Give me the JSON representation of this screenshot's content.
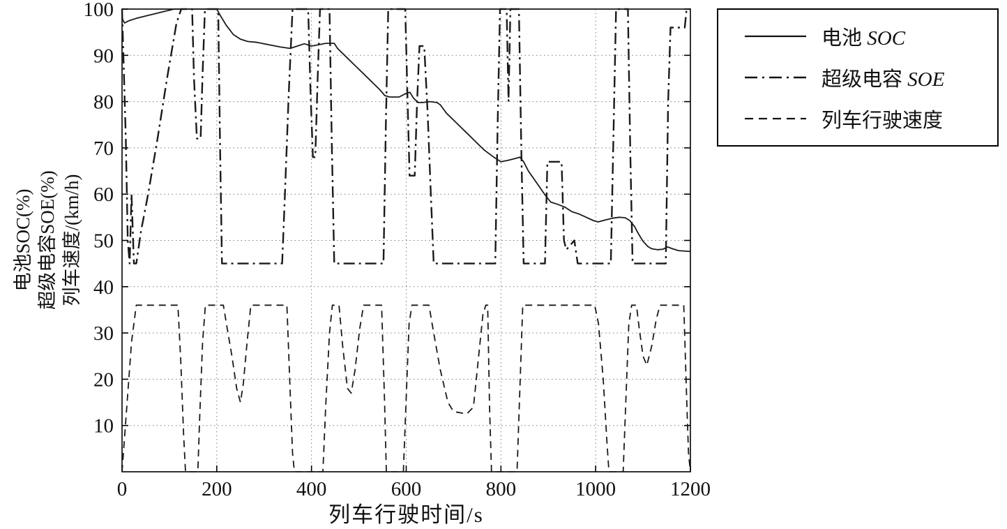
{
  "figure": {
    "background": "#ffffff",
    "axis_color": "#000000",
    "grid_color": "#7a7a7a",
    "line_color": "#111111"
  },
  "ylabel_lines": [
    "电池SOC(%)",
    "超级电容SOE(%)",
    "列车速度/(km/h)"
  ],
  "xlabel": "列车行驶时间/s",
  "legend": {
    "items": [
      {
        "prefix": "电池 ",
        "italic": "SOC",
        "style": "solid"
      },
      {
        "prefix": "超级电容 ",
        "italic": "SOE",
        "style": "dashdot"
      },
      {
        "prefix": "列车行驶速度",
        "italic": "",
        "style": "dashed"
      }
    ]
  },
  "chart_data": {
    "type": "line",
    "title": "",
    "xlabel": "列车行驶时间/s",
    "ylabel": "电池SOC(%) / 超级电容SOE(%) / 列车速度/(km/h)",
    "xlim": [
      0,
      1200
    ],
    "ylim": [
      0,
      100
    ],
    "x_ticks": [
      0,
      200,
      400,
      600,
      800,
      1000,
      1200
    ],
    "y_ticks": [
      10,
      20,
      30,
      40,
      50,
      60,
      70,
      80,
      90,
      100
    ],
    "grid": true,
    "legend_position": "outside-top-right",
    "series": [
      {
        "name": "电池 SOC",
        "style": "solid",
        "color": "#1a1a1a",
        "width": 1.8,
        "points": [
          [
            0,
            98
          ],
          [
            5,
            97
          ],
          [
            15,
            97.5
          ],
          [
            30,
            98
          ],
          [
            50,
            98.5
          ],
          [
            70,
            99
          ],
          [
            90,
            99.5
          ],
          [
            110,
            100
          ],
          [
            200,
            100
          ],
          [
            208,
            98.5
          ],
          [
            220,
            96.5
          ],
          [
            235,
            94.5
          ],
          [
            250,
            93.5
          ],
          [
            265,
            93
          ],
          [
            285,
            92.8
          ],
          [
            310,
            92.3
          ],
          [
            335,
            91.8
          ],
          [
            355,
            91.5
          ],
          [
            370,
            92
          ],
          [
            385,
            92.5
          ],
          [
            400,
            92
          ],
          [
            415,
            92.3
          ],
          [
            430,
            92.6
          ],
          [
            448,
            92.6
          ],
          [
            455,
            91.5
          ],
          [
            470,
            90
          ],
          [
            490,
            88
          ],
          [
            510,
            86
          ],
          [
            530,
            84
          ],
          [
            545,
            82.5
          ],
          [
            555,
            81.3
          ],
          [
            565,
            81
          ],
          [
            585,
            81
          ],
          [
            600,
            81.8
          ],
          [
            608,
            82
          ],
          [
            615,
            80.8
          ],
          [
            625,
            79.8
          ],
          [
            635,
            79.8
          ],
          [
            650,
            80
          ],
          [
            665,
            79.8
          ],
          [
            672,
            79.3
          ],
          [
            685,
            77.5
          ],
          [
            705,
            75.5
          ],
          [
            725,
            73.5
          ],
          [
            745,
            71.5
          ],
          [
            765,
            69.5
          ],
          [
            785,
            68
          ],
          [
            800,
            67
          ],
          [
            815,
            67.3
          ],
          [
            830,
            67.7
          ],
          [
            840,
            68
          ],
          [
            848,
            67
          ],
          [
            858,
            65
          ],
          [
            875,
            62.5
          ],
          [
            892,
            60
          ],
          [
            905,
            58.3
          ],
          [
            920,
            57.8
          ],
          [
            935,
            57.2
          ],
          [
            950,
            56.2
          ],
          [
            965,
            55.7
          ],
          [
            980,
            55
          ],
          [
            995,
            54.3
          ],
          [
            1005,
            54
          ],
          [
            1020,
            54.4
          ],
          [
            1035,
            54.8
          ],
          [
            1050,
            55
          ],
          [
            1062,
            54.9
          ],
          [
            1072,
            54.3
          ],
          [
            1082,
            53
          ],
          [
            1090,
            51.5
          ],
          [
            1100,
            49.8
          ],
          [
            1110,
            48.7
          ],
          [
            1118,
            48.2
          ],
          [
            1130,
            48
          ],
          [
            1142,
            48.1
          ],
          [
            1152,
            48.6
          ],
          [
            1162,
            48.2
          ],
          [
            1175,
            47.8
          ],
          [
            1200,
            47.6
          ]
        ]
      },
      {
        "name": "超级电容 SOE",
        "style": "dashdot",
        "color": "#1a1a1a",
        "width": 2.4,
        "points": [
          [
            0,
            100
          ],
          [
            8,
            72
          ],
          [
            12,
            50
          ],
          [
            16,
            45
          ],
          [
            20,
            60
          ],
          [
            25,
            45
          ],
          [
            30,
            45
          ],
          [
            40,
            52
          ],
          [
            55,
            60
          ],
          [
            75,
            72
          ],
          [
            95,
            85
          ],
          [
            115,
            97
          ],
          [
            125,
            100
          ],
          [
            148,
            100
          ],
          [
            152,
            85
          ],
          [
            158,
            72
          ],
          [
            166,
            72
          ],
          [
            170,
            86
          ],
          [
            175,
            100
          ],
          [
            203,
            100
          ],
          [
            207,
            70
          ],
          [
            211,
            45
          ],
          [
            215,
            45
          ],
          [
            338,
            45
          ],
          [
            344,
            60
          ],
          [
            352,
            82
          ],
          [
            360,
            100
          ],
          [
            393,
            100
          ],
          [
            398,
            82
          ],
          [
            403,
            68
          ],
          [
            408,
            68
          ],
          [
            413,
            85
          ],
          [
            418,
            100
          ],
          [
            438,
            100
          ],
          [
            443,
            70
          ],
          [
            448,
            45
          ],
          [
            455,
            45
          ],
          [
            552,
            45
          ],
          [
            557,
            75
          ],
          [
            562,
            100
          ],
          [
            598,
            100
          ],
          [
            603,
            80
          ],
          [
            607,
            64
          ],
          [
            618,
            64
          ],
          [
            623,
            80
          ],
          [
            628,
            92
          ],
          [
            638,
            92
          ],
          [
            645,
            78
          ],
          [
            652,
            60
          ],
          [
            658,
            45
          ],
          [
            665,
            45
          ],
          [
            788,
            45
          ],
          [
            793,
            75
          ],
          [
            798,
            100
          ],
          [
            812,
            100
          ],
          [
            816,
            80
          ],
          [
            820,
            100
          ],
          [
            838,
            100
          ],
          [
            843,
            70
          ],
          [
            848,
            45
          ],
          [
            855,
            45
          ],
          [
            893,
            45
          ],
          [
            898,
            67
          ],
          [
            928,
            67
          ],
          [
            933,
            50
          ],
          [
            938,
            48
          ],
          [
            955,
            50
          ],
          [
            962,
            45
          ],
          [
            968,
            45
          ],
          [
            1032,
            45
          ],
          [
            1038,
            75
          ],
          [
            1043,
            100
          ],
          [
            1068,
            100
          ],
          [
            1073,
            70
          ],
          [
            1078,
            45
          ],
          [
            1085,
            45
          ],
          [
            1148,
            45
          ],
          [
            1153,
            80
          ],
          [
            1158,
            96
          ],
          [
            1188,
            96
          ],
          [
            1192,
            100
          ],
          [
            1200,
            100
          ]
        ]
      },
      {
        "name": "列车行驶速度",
        "style": "dashed",
        "color": "#1a1a1a",
        "width": 1.8,
        "points": [
          [
            0,
            0
          ],
          [
            10,
            14
          ],
          [
            20,
            28
          ],
          [
            30,
            36
          ],
          [
            118,
            36
          ],
          [
            124,
            24
          ],
          [
            130,
            8
          ],
          [
            134,
            0
          ],
          [
            160,
            0
          ],
          [
            164,
            12
          ],
          [
            170,
            28
          ],
          [
            176,
            36
          ],
          [
            214,
            36
          ],
          [
            222,
            31
          ],
          [
            232,
            25
          ],
          [
            242,
            18
          ],
          [
            250,
            15
          ],
          [
            256,
            19
          ],
          [
            264,
            28
          ],
          [
            272,
            36
          ],
          [
            348,
            36
          ],
          [
            354,
            20
          ],
          [
            360,
            4
          ],
          [
            364,
            0
          ],
          [
            424,
            0
          ],
          [
            430,
            14
          ],
          [
            438,
            30
          ],
          [
            444,
            36
          ],
          [
            458,
            36
          ],
          [
            466,
            27
          ],
          [
            476,
            18
          ],
          [
            484,
            17
          ],
          [
            492,
            22
          ],
          [
            502,
            31
          ],
          [
            510,
            36
          ],
          [
            548,
            36
          ],
          [
            554,
            16
          ],
          [
            558,
            0
          ],
          [
            594,
            0
          ],
          [
            600,
            16
          ],
          [
            606,
            32
          ],
          [
            612,
            36
          ],
          [
            648,
            36
          ],
          [
            658,
            30
          ],
          [
            672,
            22
          ],
          [
            688,
            15
          ],
          [
            700,
            13
          ],
          [
            728,
            12.5
          ],
          [
            742,
            14
          ],
          [
            752,
            24
          ],
          [
            762,
            34
          ],
          [
            768,
            36
          ],
          [
            772,
            36
          ],
          [
            776,
            14
          ],
          [
            780,
            0
          ],
          [
            834,
            0
          ],
          [
            840,
            18
          ],
          [
            846,
            36
          ],
          [
            998,
            36
          ],
          [
            1006,
            32
          ],
          [
            1016,
            20
          ],
          [
            1024,
            6
          ],
          [
            1028,
            0
          ],
          [
            1058,
            0
          ],
          [
            1064,
            16
          ],
          [
            1070,
            32
          ],
          [
            1076,
            36
          ],
          [
            1086,
            36
          ],
          [
            1092,
            31
          ],
          [
            1100,
            25
          ],
          [
            1108,
            23
          ],
          [
            1118,
            27
          ],
          [
            1128,
            33
          ],
          [
            1136,
            36
          ],
          [
            1186,
            36
          ],
          [
            1192,
            16
          ],
          [
            1196,
            4
          ],
          [
            1200,
            0
          ]
        ]
      }
    ]
  }
}
